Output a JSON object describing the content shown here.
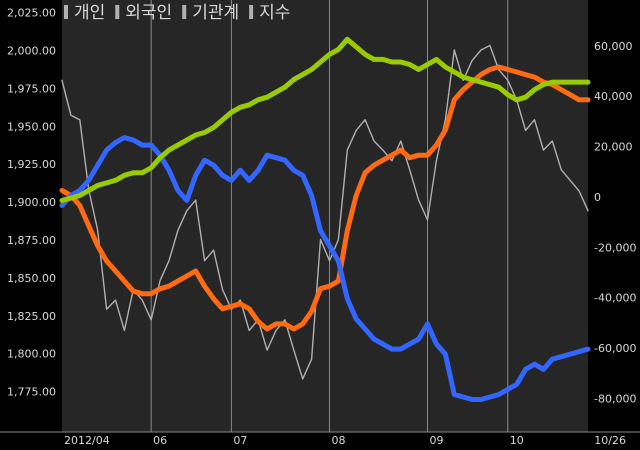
{
  "chart_data": {
    "type": "line",
    "legend": "top-left",
    "categories": [
      "2012/04",
      null,
      null,
      null,
      null,
      null,
      null,
      null,
      null,
      null,
      "06",
      null,
      null,
      null,
      null,
      null,
      null,
      null,
      null,
      "07",
      null,
      null,
      null,
      null,
      null,
      null,
      null,
      null,
      null,
      null,
      "08",
      null,
      null,
      null,
      null,
      null,
      null,
      null,
      null,
      null,
      null,
      "09",
      null,
      null,
      null,
      null,
      null,
      null,
      null,
      null,
      "10",
      null,
      null,
      null,
      null,
      null,
      null,
      null,
      null,
      "10/26"
    ],
    "series": [
      {
        "name": "개인",
        "color": "#3366ff",
        "axis": "y2",
        "values": [
          -3000,
          1000,
          3000,
          7000,
          13000,
          19000,
          22000,
          24000,
          23000,
          21000,
          21000,
          17000,
          11000,
          3000,
          -1000,
          9000,
          15000,
          13000,
          9000,
          7000,
          11000,
          7000,
          11000,
          17000,
          16000,
          15000,
          11000,
          9000,
          1000,
          -13000,
          -19000,
          -25000,
          -40000,
          -48000,
          -52000,
          -56000,
          -58000,
          -60000,
          -60000,
          -58000,
          -56000,
          -50000,
          -58000,
          -62000,
          -78000,
          -79000,
          -80000,
          -80000,
          -79000,
          -78000,
          -76000,
          -74000,
          -68000,
          -66000,
          -68000,
          -64000,
          -63000,
          -62000,
          -61000,
          -60000
        ]
      },
      {
        "name": "외국인",
        "color": "#ff6a13",
        "axis": "y2",
        "values": [
          3000,
          1000,
          -3000,
          -11000,
          -19000,
          -25000,
          -29000,
          -33000,
          -37000,
          -38000,
          -38000,
          -36000,
          -35000,
          -33000,
          -31000,
          -29000,
          -35000,
          -40000,
          -44000,
          -43000,
          -42000,
          -44000,
          -49000,
          -52000,
          -50000,
          -50000,
          -52000,
          -50000,
          -45000,
          -36000,
          -35000,
          -33000,
          -13000,
          1000,
          10000,
          13000,
          15000,
          17000,
          19000,
          16000,
          17000,
          17000,
          21000,
          27000,
          39000,
          43000,
          46000,
          49000,
          51000,
          52000,
          51000,
          50000,
          49000,
          48000,
          46000,
          45000,
          43000,
          41000,
          39000,
          39000
        ]
      },
      {
        "name": "기관계",
        "color": "#99cc00",
        "axis": "y2",
        "values": [
          -1000,
          0,
          1000,
          3000,
          5000,
          6000,
          7000,
          9000,
          10000,
          10000,
          12000,
          16000,
          19000,
          21000,
          23000,
          25000,
          26000,
          28000,
          31000,
          34000,
          36000,
          37000,
          39000,
          40000,
          42000,
          44000,
          47000,
          49000,
          51000,
          54000,
          57000,
          59000,
          63000,
          60000,
          57000,
          55000,
          55000,
          54000,
          54000,
          53000,
          51000,
          53000,
          55000,
          52000,
          50000,
          48000,
          47000,
          46000,
          45000,
          44000,
          41000,
          39000,
          40000,
          43000,
          45000,
          46000,
          46000,
          46000,
          46000,
          46000
        ]
      },
      {
        "name": "지수",
        "color": "#b0b0b0",
        "axis": "y",
        "values": [
          1981,
          1958,
          1955,
          1909,
          1882,
          1830,
          1836,
          1816,
          1843,
          1836,
          1823,
          1849,
          1862,
          1882,
          1895,
          1902,
          1862,
          1869,
          1843,
          1830,
          1836,
          1816,
          1823,
          1803,
          1816,
          1823,
          1803,
          1784,
          1797,
          1876,
          1862,
          1876,
          1935,
          1948,
          1955,
          1941,
          1935,
          1928,
          1941,
          1922,
          1902,
          1889,
          1928,
          1955,
          2001,
          1981,
          1994,
          2001,
          2004,
          1988,
          1981,
          1968,
          1948,
          1955,
          1935,
          1941,
          1922,
          1915,
          1908,
          1895
        ]
      }
    ],
    "ylim": [
      1749,
      2034
    ],
    "yticks": [
      {
        "value": 2025,
        "label": "2,025.00"
      },
      {
        "value": 2000,
        "label": "2,000.00"
      },
      {
        "value": 1975,
        "label": "1,975.00"
      },
      {
        "value": 1950,
        "label": "1,950.00"
      },
      {
        "value": 1925,
        "label": "1,925.00"
      },
      {
        "value": 1900,
        "label": "1,900.00"
      },
      {
        "value": 1875,
        "label": "1,875.00"
      },
      {
        "value": 1850,
        "label": "1,850.00"
      },
      {
        "value": 1825,
        "label": "1,825.00"
      },
      {
        "value": 1800,
        "label": "1,800.00"
      },
      {
        "value": 1775,
        "label": "1,775.00"
      }
    ],
    "y2lim": [
      -92900,
      78600
    ],
    "y2ticks": [
      {
        "value": 60000,
        "label": "60,000"
      },
      {
        "value": 40000,
        "label": "40,000"
      },
      {
        "value": 20000,
        "label": "20,000"
      },
      0,
      {
        "value": -20000,
        "label": "-20,000"
      },
      {
        "value": -40000,
        "label": "-40,000"
      },
      {
        "value": -60000,
        "label": "-60,000"
      },
      {
        "value": -80000,
        "label": "-80,000"
      }
    ]
  }
}
